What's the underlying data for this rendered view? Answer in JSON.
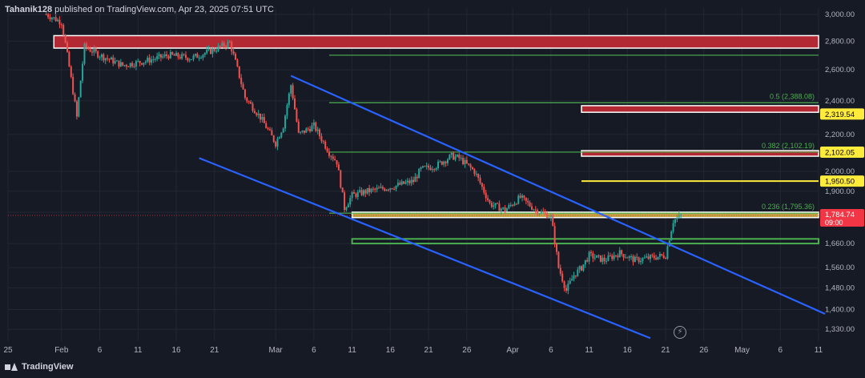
{
  "header": {
    "author": "Tahanik128",
    "text": " published on TradingView.com, Apr 23, 2025 07:51 UTC"
  },
  "brand": {
    "name": "TradingView"
  },
  "flash_glyph": "⚡",
  "colors": {
    "background": "#161a25",
    "grid": "#232734",
    "candle_up": "#26a69a",
    "candle_down": "#ef5350",
    "channel": "#2962ff",
    "fib": "#4caf50",
    "zone_red": "#b22833",
    "zone_yellow": "#f5cd4a",
    "level_yellow": "#ffeb3b",
    "price_tag": "#f23645"
  },
  "chart_data": {
    "type": "candlestick",
    "symbol_units": "USD",
    "x_axis": {
      "ticks": [
        "25",
        "Feb",
        "6",
        "11",
        "16",
        "21",
        "Mar",
        "6",
        "11",
        "16",
        "21",
        "26",
        "Apr",
        "6",
        "11",
        "16",
        "21",
        "26",
        "May",
        "6",
        "11"
      ],
      "range": [
        "2025-01-25",
        "2025-05-11"
      ]
    },
    "y_axis": {
      "scale": "log",
      "ticks": [
        3000,
        2800,
        2600,
        2400,
        2200,
        2000,
        1900,
        1800,
        1660,
        1560,
        1480,
        1400,
        1330
      ],
      "tick_labels": [
        "3,000.00",
        "2,800.00",
        "2,600.00",
        "2,400.00",
        "2,200.00",
        "2,000.00",
        "1,900.00",
        "1,800.00",
        "1,660.00",
        "1,560.00",
        "1,480.00",
        "1,400.00",
        "1,330.00"
      ],
      "range": [
        1290,
        3050
      ]
    },
    "price_path": [
      [
        "2025-01-30",
        3000
      ],
      [
        "2025-02-01",
        2940
      ],
      [
        "2025-02-03",
        2300
      ],
      [
        "2025-02-04",
        2760
      ],
      [
        "2025-02-06",
        2700
      ],
      [
        "2025-02-09",
        2630
      ],
      [
        "2025-02-12",
        2660
      ],
      [
        "2025-02-15",
        2700
      ],
      [
        "2025-02-18",
        2680
      ],
      [
        "2025-02-21",
        2740
      ],
      [
        "2025-02-23",
        2790
      ],
      [
        "2025-02-25",
        2420
      ],
      [
        "2025-02-27",
        2300
      ],
      [
        "2025-03-01",
        2150
      ],
      [
        "2025-03-02",
        2250
      ],
      [
        "2025-03-03",
        2500
      ],
      [
        "2025-03-04",
        2200
      ],
      [
        "2025-03-06",
        2250
      ],
      [
        "2025-03-08",
        2100
      ],
      [
        "2025-03-09",
        2050
      ],
      [
        "2025-03-10",
        1820
      ],
      [
        "2025-03-11",
        1880
      ],
      [
        "2025-03-13",
        1900
      ],
      [
        "2025-03-16",
        1920
      ],
      [
        "2025-03-19",
        1950
      ],
      [
        "2025-03-20",
        2010
      ],
      [
        "2025-03-22",
        2030
      ],
      [
        "2025-03-24",
        2080
      ],
      [
        "2025-03-25",
        2070
      ],
      [
        "2025-03-27",
        2000
      ],
      [
        "2025-03-29",
        1840
      ],
      [
        "2025-03-31",
        1810
      ],
      [
        "2025-04-02",
        1870
      ],
      [
        "2025-04-04",
        1810
      ],
      [
        "2025-04-06",
        1780
      ],
      [
        "2025-04-07",
        1560
      ],
      [
        "2025-04-08",
        1470
      ],
      [
        "2025-04-09",
        1530
      ],
      [
        "2025-04-10",
        1560
      ],
      [
        "2025-04-11",
        1610
      ],
      [
        "2025-04-13",
        1590
      ],
      [
        "2025-04-15",
        1620
      ],
      [
        "2025-04-17",
        1590
      ],
      [
        "2025-04-19",
        1600
      ],
      [
        "2025-04-21",
        1610
      ],
      [
        "2025-04-22",
        1760
      ],
      [
        "2025-04-23",
        1784.74
      ]
    ],
    "channel_upper": [
      [
        "2025-03-03",
        2560
      ],
      [
        "2025-04-23",
        1640
      ]
    ],
    "channel_lower": [
      [
        "2025-02-19",
        2070
      ],
      [
        "2025-04-19",
        1300
      ]
    ],
    "fib_levels": [
      {
        "label": "0.5 (2,388.08)",
        "price": 2388.08
      },
      {
        "label": "0.382 (2,102.19)",
        "price": 2102.19
      },
      {
        "label": "0.236 (1,795.36)",
        "price": 1795.36
      }
    ],
    "fib_top": 2700,
    "zones": [
      {
        "color": "red",
        "top": 2840,
        "bottom": 2750,
        "start": "2025-01-31"
      },
      {
        "color": "red",
        "top": 2370,
        "bottom": 2330,
        "start": "2025-04-10"
      },
      {
        "color": "red",
        "top": 2110,
        "bottom": 2080,
        "start": "2025-04-10"
      },
      {
        "color": "yellow",
        "top": 1800,
        "bottom": 1775,
        "start": "2025-03-11"
      },
      {
        "color": "green",
        "top": 1680,
        "bottom": 1660,
        "start": "2025-03-11"
      }
    ],
    "horizontal_levels": [
      {
        "price": 1950.5,
        "start": "2025-04-10"
      }
    ],
    "price_labels": [
      {
        "text": "2,319.54",
        "price": 2319.54,
        "style": "yellow"
      },
      {
        "text": "2,102.05",
        "price": 2102.05,
        "style": "yellow"
      },
      {
        "text": "1,950.50",
        "price": 1950.5,
        "style": "yellow"
      },
      {
        "text": "1,784.74",
        "sub": "09:00",
        "price": 1784.74,
        "style": "last"
      }
    ],
    "last_price": 1784.74
  }
}
